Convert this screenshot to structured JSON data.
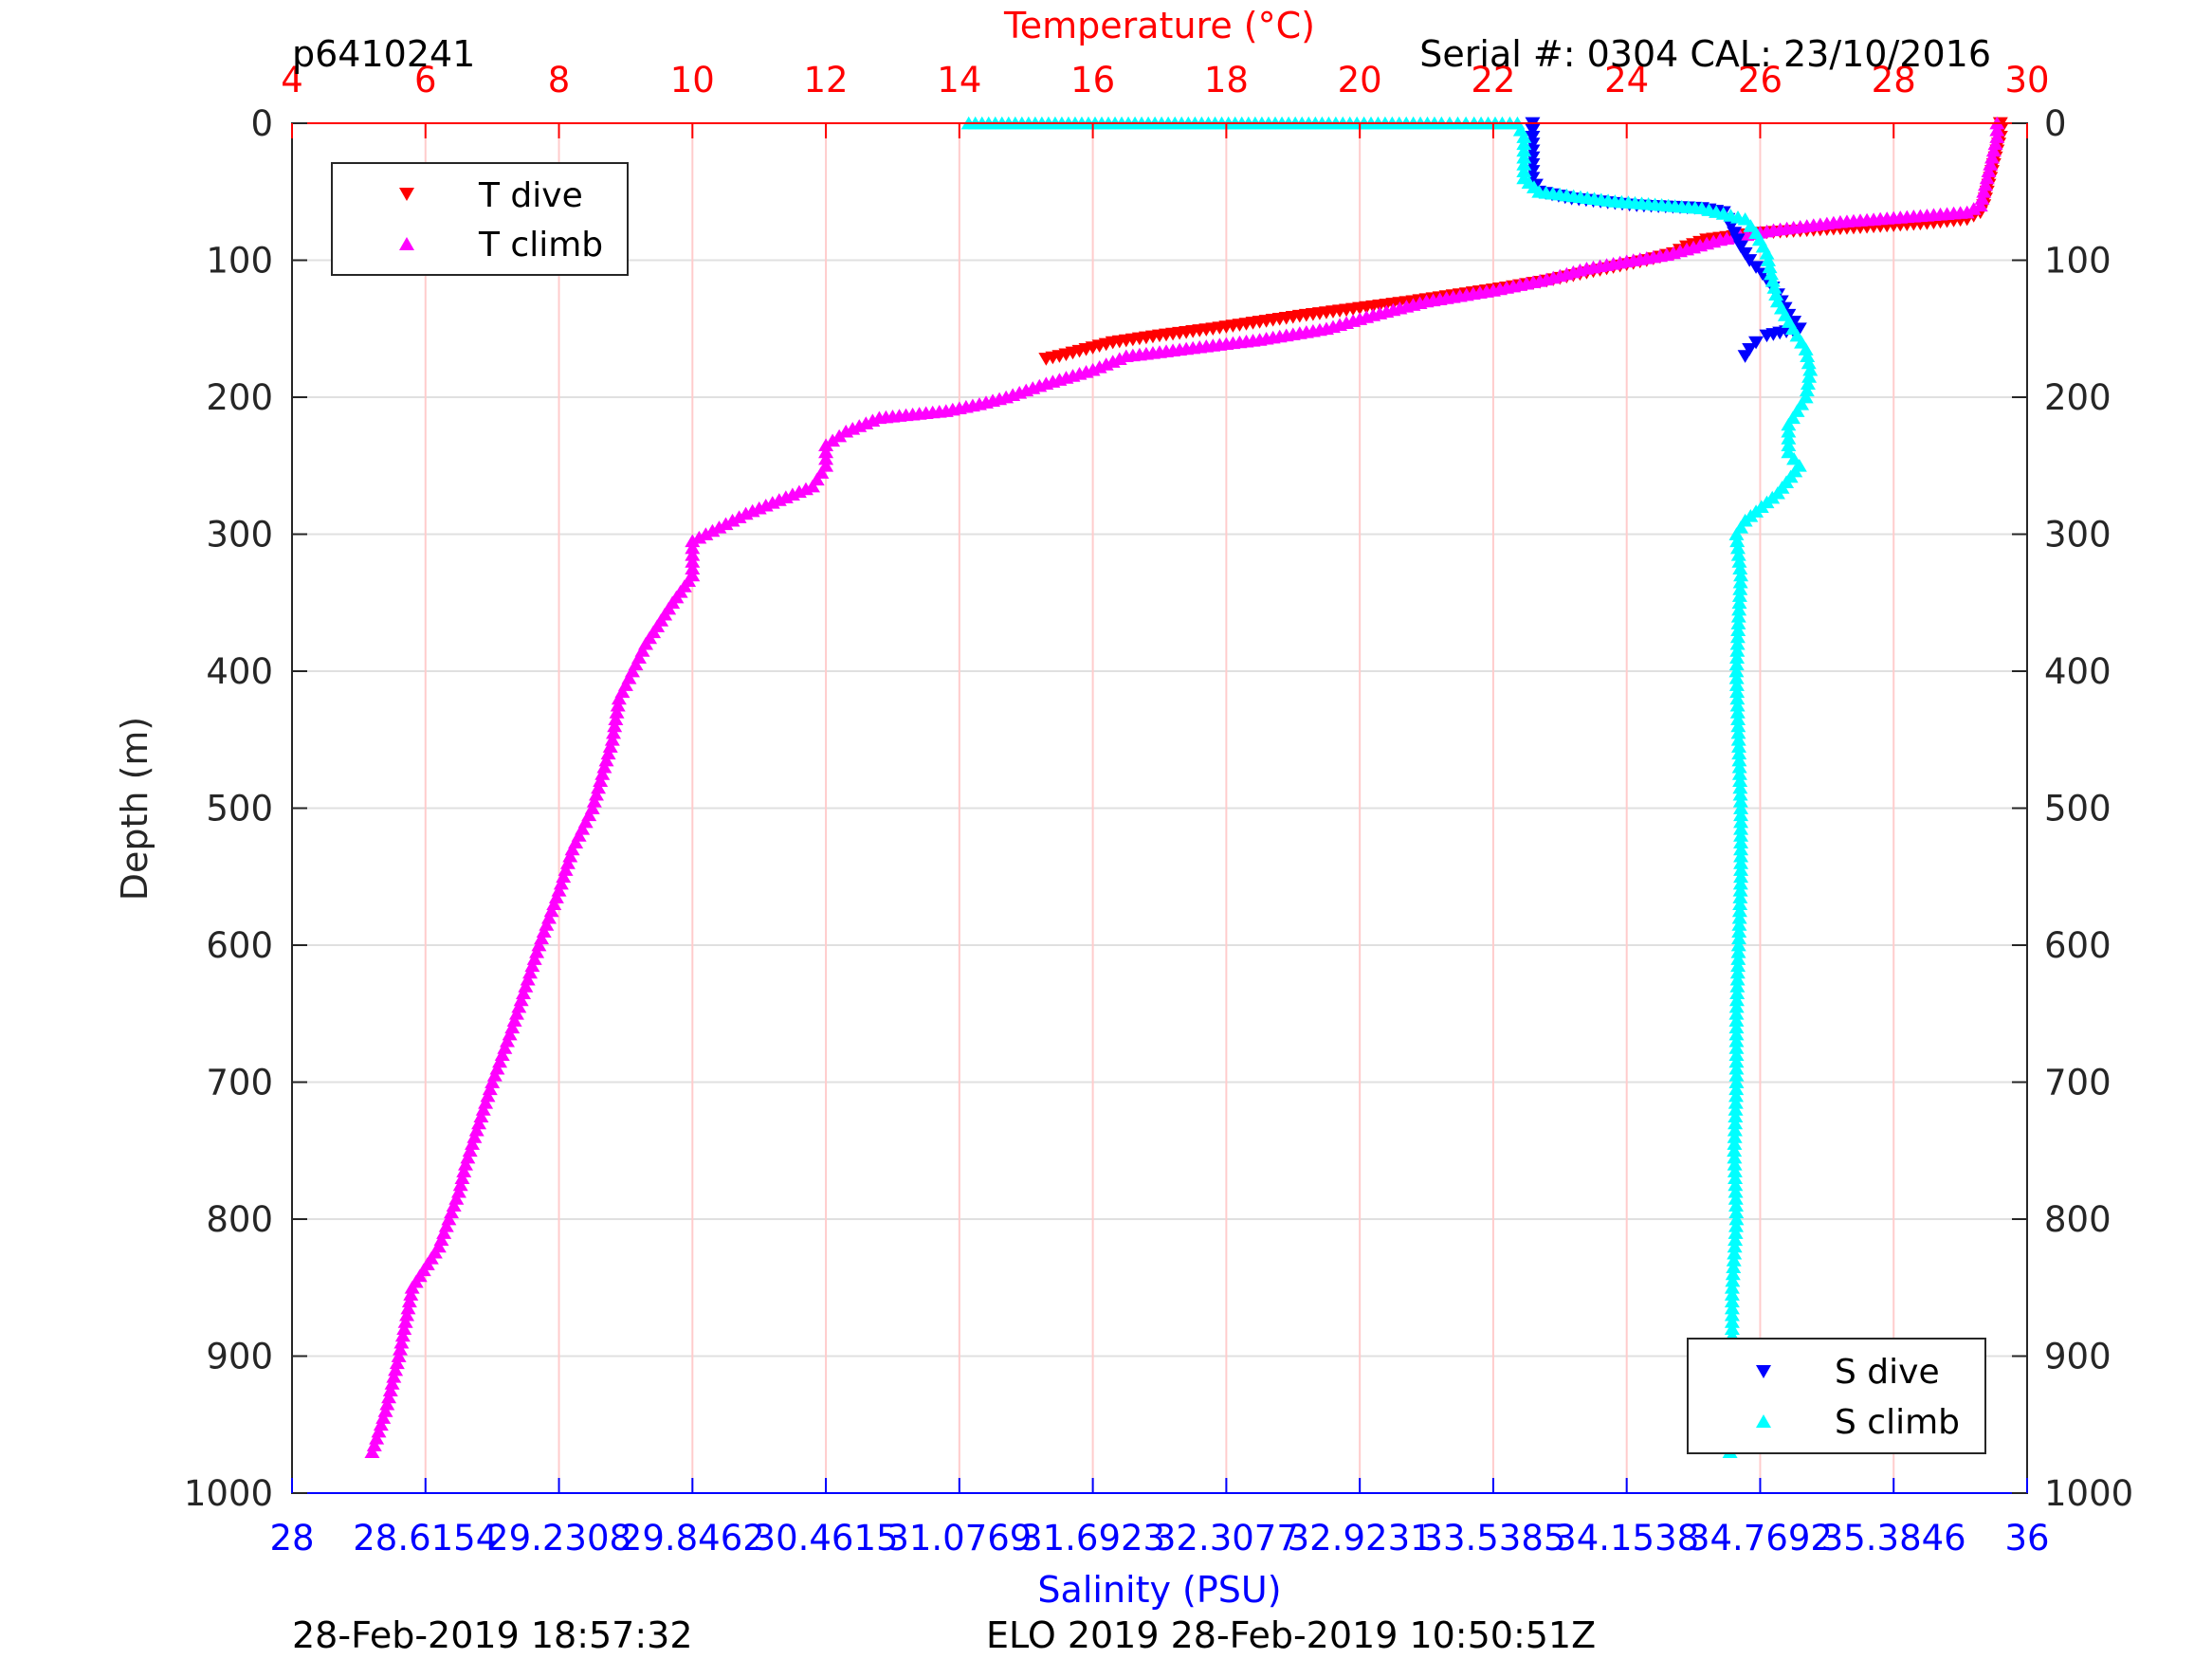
{
  "header": {
    "left": "p6410241",
    "right": "Serial #: 0304  CAL: 23/10/2016"
  },
  "footer": {
    "left": "28-Feb-2019 18:57:32",
    "right": "ELO 2019 28-Feb-2019 10:50:51Z"
  },
  "colors": {
    "temperature_axis": "#ff0000",
    "salinity_axis": "#0000ff",
    "t_dive": "#ff0000",
    "t_climb": "#ff00ff",
    "s_dive": "#0000ff",
    "s_climb": "#00ffff",
    "grid_temperature": "#ffcccc",
    "grid_depth": "#e0e0e0"
  },
  "chart_data": {
    "type": "scatter",
    "grid": true,
    "y_axis": {
      "label": "Depth (m)",
      "range": [
        0,
        1000
      ],
      "reversed": true,
      "ticks": [
        "0",
        "100",
        "200",
        "300",
        "400",
        "500",
        "600",
        "700",
        "800",
        "900",
        "1000"
      ]
    },
    "top_axis": {
      "label": "Temperature (°C)",
      "range": [
        4,
        30
      ],
      "ticks": [
        "4",
        "6",
        "8",
        "10",
        "12",
        "14",
        "16",
        "18",
        "20",
        "22",
        "24",
        "26",
        "28",
        "30"
      ]
    },
    "bottom_axis": {
      "label": "Salinity (PSU)",
      "range": [
        28,
        36
      ],
      "ticks": [
        "28",
        "28.6154",
        "29.2308",
        "29.8462",
        "30.4615",
        "31.0769",
        "31.6923",
        "32.3077",
        "32.9231",
        "33.5385",
        "34.1538",
        "34.7692",
        "35.3846",
        "36"
      ]
    },
    "legends": [
      {
        "position": "top-left",
        "entries": [
          {
            "label": "T dive",
            "series": "t_dive"
          },
          {
            "label": "T climb",
            "series": "t_climb"
          }
        ]
      },
      {
        "position": "bottom-right",
        "entries": [
          {
            "label": "S dive",
            "series": "s_dive"
          },
          {
            "label": "S climb",
            "series": "s_climb"
          }
        ]
      }
    ],
    "series": [
      {
        "name": "T dive",
        "key": "t_dive",
        "axis": "temperature",
        "marker": "triangle-down",
        "points": [
          [
            29.6,
            0
          ],
          [
            29.6,
            10
          ],
          [
            29.55,
            20
          ],
          [
            29.5,
            30
          ],
          [
            29.45,
            40
          ],
          [
            29.4,
            50
          ],
          [
            29.35,
            60
          ],
          [
            29.3,
            65
          ],
          [
            29.1,
            70
          ],
          [
            28.5,
            73
          ],
          [
            27.5,
            76
          ],
          [
            26.0,
            80
          ],
          [
            25.2,
            85
          ],
          [
            24.9,
            90
          ],
          [
            24.7,
            95
          ],
          [
            24.3,
            100
          ],
          [
            23.8,
            105
          ],
          [
            23.3,
            110
          ],
          [
            22.8,
            115
          ],
          [
            22.2,
            120
          ],
          [
            21.5,
            125
          ],
          [
            20.8,
            130
          ],
          [
            20.0,
            135
          ],
          [
            19.2,
            140
          ],
          [
            18.5,
            145
          ],
          [
            17.8,
            150
          ],
          [
            17.0,
            155
          ],
          [
            16.3,
            160
          ],
          [
            15.9,
            165
          ],
          [
            15.5,
            170
          ],
          [
            15.3,
            172
          ]
        ]
      },
      {
        "name": "T climb",
        "key": "t_climb",
        "axis": "temperature",
        "marker": "triangle-up",
        "points": [
          [
            29.55,
            0
          ],
          [
            29.55,
            10
          ],
          [
            29.5,
            20
          ],
          [
            29.45,
            30
          ],
          [
            29.4,
            40
          ],
          [
            29.35,
            50
          ],
          [
            29.3,
            60
          ],
          [
            29.1,
            65
          ],
          [
            28.3,
            68
          ],
          [
            27.2,
            72
          ],
          [
            26.2,
            78
          ],
          [
            25.4,
            85
          ],
          [
            24.9,
            92
          ],
          [
            24.6,
            96
          ],
          [
            24.1,
            100
          ],
          [
            23.4,
            106
          ],
          [
            22.8,
            114
          ],
          [
            22.0,
            122
          ],
          [
            21.0,
            130
          ],
          [
            20.2,
            140
          ],
          [
            19.5,
            150
          ],
          [
            18.5,
            158
          ],
          [
            17.5,
            164
          ],
          [
            16.5,
            170
          ],
          [
            16.0,
            180
          ],
          [
            15.3,
            190
          ],
          [
            14.7,
            200
          ],
          [
            14.3,
            205
          ],
          [
            13.8,
            210
          ],
          [
            12.8,
            215
          ],
          [
            12.3,
            225
          ],
          [
            12.0,
            235
          ],
          [
            12.0,
            250
          ],
          [
            11.8,
            265
          ],
          [
            11.3,
            275
          ],
          [
            10.8,
            285
          ],
          [
            10.4,
            295
          ],
          [
            10.0,
            305
          ],
          [
            10.0,
            330
          ],
          [
            9.7,
            350
          ],
          [
            9.3,
            380
          ],
          [
            9.1,
            400
          ],
          [
            8.9,
            420
          ],
          [
            8.8,
            450
          ],
          [
            8.5,
            500
          ],
          [
            8.2,
            530
          ],
          [
            8.0,
            560
          ],
          [
            7.7,
            600
          ],
          [
            7.5,
            630
          ],
          [
            7.3,
            660
          ],
          [
            7.0,
            700
          ],
          [
            6.8,
            730
          ],
          [
            6.6,
            760
          ],
          [
            6.5,
            780
          ],
          [
            6.2,
            820
          ],
          [
            5.8,
            850
          ],
          [
            5.6,
            900
          ],
          [
            5.4,
            940
          ],
          [
            5.2,
            970
          ]
        ]
      },
      {
        "name": "S dive",
        "key": "s_dive",
        "axis": "salinity",
        "marker": "triangle-down",
        "points": [
          [
            33.72,
            0
          ],
          [
            33.72,
            20
          ],
          [
            33.72,
            40
          ],
          [
            33.75,
            50
          ],
          [
            33.9,
            55
          ],
          [
            34.2,
            60
          ],
          [
            34.5,
            62
          ],
          [
            34.6,
            65
          ],
          [
            34.62,
            70
          ],
          [
            34.65,
            80
          ],
          [
            34.68,
            90
          ],
          [
            34.72,
            100
          ],
          [
            34.78,
            110
          ],
          [
            34.85,
            125
          ],
          [
            34.9,
            140
          ],
          [
            34.95,
            150
          ],
          [
            34.8,
            155
          ],
          [
            34.75,
            160
          ],
          [
            34.72,
            165
          ],
          [
            34.7,
            170
          ]
        ]
      },
      {
        "name": "S climb",
        "key": "s_climb",
        "axis": "salinity",
        "marker": "triangle-up",
        "points": [
          [
            31.12,
            0
          ],
          [
            32.04,
            0
          ],
          [
            32.78,
            0
          ],
          [
            33.3,
            0
          ],
          [
            33.45,
            0
          ],
          [
            33.58,
            0
          ],
          [
            33.65,
            0
          ],
          [
            33.68,
            10
          ],
          [
            33.68,
            25
          ],
          [
            33.68,
            40
          ],
          [
            33.75,
            50
          ],
          [
            34.1,
            57
          ],
          [
            34.5,
            62
          ],
          [
            34.7,
            70
          ],
          [
            34.75,
            80
          ],
          [
            34.8,
            95
          ],
          [
            34.82,
            110
          ],
          [
            34.85,
            130
          ],
          [
            34.92,
            150
          ],
          [
            34.98,
            165
          ],
          [
            35.0,
            180
          ],
          [
            34.98,
            200
          ],
          [
            34.9,
            220
          ],
          [
            34.9,
            240
          ],
          [
            34.95,
            250
          ],
          [
            34.85,
            270
          ],
          [
            34.7,
            290
          ],
          [
            34.66,
            300
          ],
          [
            34.68,
            330
          ],
          [
            34.67,
            360
          ],
          [
            34.66,
            400
          ],
          [
            34.67,
            450
          ],
          [
            34.68,
            500
          ],
          [
            34.68,
            550
          ],
          [
            34.67,
            600
          ],
          [
            34.66,
            650
          ],
          [
            34.66,
            700
          ],
          [
            34.65,
            750
          ],
          [
            34.66,
            800
          ],
          [
            34.64,
            850
          ],
          [
            34.64,
            900
          ],
          [
            34.63,
            950
          ],
          [
            34.63,
            970
          ]
        ]
      }
    ]
  }
}
